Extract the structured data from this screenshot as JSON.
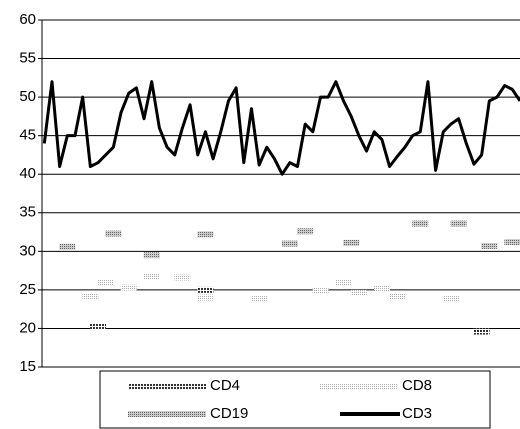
{
  "chart_data": {
    "type": "line",
    "x": [
      0,
      1,
      2,
      3,
      4,
      5,
      6,
      7,
      8,
      9,
      10,
      11,
      12,
      13,
      14,
      15,
      16,
      17,
      18,
      19,
      20,
      21,
      22,
      23,
      24,
      25,
      26,
      27,
      28,
      29,
      30,
      31,
      32,
      33,
      34,
      35,
      36,
      37,
      38,
      39,
      40,
      41,
      42,
      43,
      44,
      45,
      46,
      47,
      48,
      49,
      50,
      51,
      52,
      53,
      54,
      55,
      56,
      57,
      58,
      59,
      60,
      61,
      62
    ],
    "xlim": [
      -0.3,
      62
    ],
    "ylim": [
      15,
      60
    ],
    "yticks": [
      15,
      20,
      25,
      30,
      35,
      40,
      45,
      50,
      55,
      60
    ],
    "grid": true,
    "series": [
      {
        "name": "CD4",
        "color": "#333333",
        "x": [
          7,
          21,
          57
        ],
        "values": [
          20.2,
          25,
          19.6
        ]
      },
      {
        "name": "CD8",
        "color": "#c8c8c8",
        "x": [
          6,
          8,
          11,
          14,
          18,
          21,
          28,
          36,
          39,
          41,
          44,
          46,
          53
        ],
        "values": [
          24.2,
          26,
          25.3,
          26.8,
          26.6,
          24,
          23.8,
          24.9,
          25.9,
          24.6,
          25.2,
          24.2,
          23.8
        ]
      },
      {
        "name": "CD19",
        "color": "#8a8a8a",
        "x": [
          3,
          9,
          14,
          21,
          32,
          34,
          40,
          49,
          54,
          58,
          61
        ],
        "values": [
          30.6,
          32.3,
          29.5,
          32.2,
          31,
          32.6,
          31.1,
          33.6,
          33.6,
          30.7,
          31.2
        ]
      },
      {
        "name": "CD3",
        "color": "#000000",
        "values": [
          44,
          52,
          41,
          45,
          45,
          50,
          41,
          41.5,
          42.5,
          43.5,
          48,
          50.5,
          51.2,
          47.2,
          52,
          46,
          43.5,
          42.5,
          46,
          49,
          42.5,
          45.5,
          42,
          45.5,
          49.5,
          51.2,
          41.5,
          48.5,
          41.2,
          43.5,
          42,
          40,
          41.5,
          41,
          46.5,
          45.5,
          50,
          50,
          52,
          49.5,
          47.5,
          45,
          43,
          45.5,
          44.5,
          41,
          42.3,
          43.5,
          45,
          45.5,
          52,
          40.5,
          45.5,
          46.5,
          47.2,
          44,
          41.3,
          42.5,
          49.5,
          50,
          51.5,
          51,
          49.5
        ]
      }
    ]
  }
}
